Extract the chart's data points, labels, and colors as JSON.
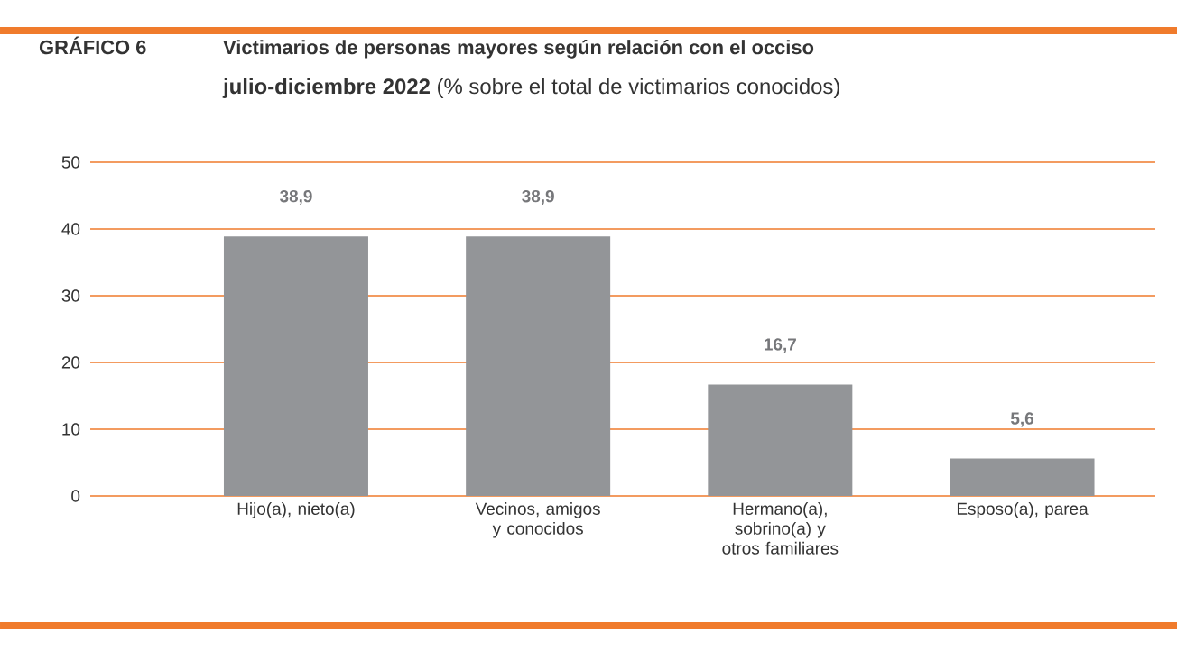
{
  "chart_data": {
    "type": "bar",
    "title": "Victimarios de personas mayores según relación con el occiso",
    "subtitle": "**julio-diciembre 2022** (% sobre el total de victimarios conocidos)",
    "annotations": [
      "GRÁFICO 6"
    ],
    "categories": [
      "Hijo(a), nieto(a)",
      "Vecinos, amigos y conocidos",
      "Hermano(a), sobrino(a) y otros familiares",
      "Esposo(a), parea"
    ],
    "values": [
      38.9,
      38.9,
      16.7,
      5.6
    ],
    "value_labels": [
      "38,9",
      "38,9",
      "16,7",
      "5,6"
    ],
    "color": "#939598",
    "ylim": [
      0,
      50
    ],
    "yticks": [
      0,
      10,
      20,
      30,
      40,
      50
    ],
    "grid": "y"
  }
}
